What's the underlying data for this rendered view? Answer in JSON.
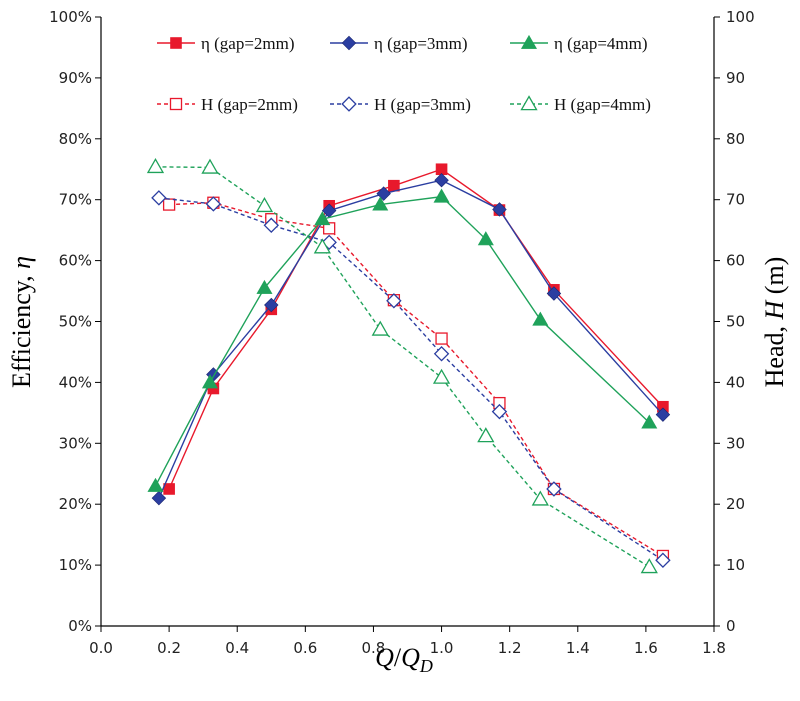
{
  "chart_data": {
    "type": "line",
    "xlabel": "Q/QD",
    "ylabel_left": "Efficiency, η",
    "ylabel_right": "Head, H (m)",
    "xlim": [
      0,
      1.8
    ],
    "ylim_left": [
      0,
      100
    ],
    "ylim_right": [
      0,
      100
    ],
    "x_ticks": [
      "0.0",
      "0.2",
      "0.4",
      "0.6",
      "0.8",
      "1.0",
      "1.2",
      "1.4",
      "1.6",
      "1.8"
    ],
    "y_left_ticks": [
      "0%",
      "10%",
      "20%",
      "30%",
      "40%",
      "50%",
      "60%",
      "70%",
      "80%",
      "90%",
      "100%"
    ],
    "y_right_ticks": [
      "0",
      "10",
      "20",
      "30",
      "40",
      "50",
      "60",
      "70",
      "80",
      "90",
      "100"
    ],
    "grid": false,
    "legend_position": "top",
    "colors": {
      "gap2": "#e8192c",
      "gap3": "#2b3ea1",
      "gap4": "#1fa25a"
    },
    "series": [
      {
        "name": "η (gap=2mm)",
        "axis": "left",
        "style": "solid",
        "marker": "square",
        "color": "#e8192c",
        "x": [
          0.2,
          0.33,
          0.5,
          0.67,
          0.86,
          1.0,
          1.17,
          1.33,
          1.65
        ],
        "y": [
          22.5,
          39,
          52,
          69,
          72.3,
          75,
          68.3,
          55.2,
          36
        ]
      },
      {
        "name": "η (gap=3mm)",
        "axis": "left",
        "style": "solid",
        "marker": "diamond",
        "color": "#2b3ea1",
        "x": [
          0.17,
          0.33,
          0.5,
          0.67,
          0.83,
          1.0,
          1.17,
          1.33,
          1.65
        ],
        "y": [
          21,
          41.3,
          52.7,
          68.2,
          71,
          73.2,
          68.4,
          54.6,
          34.7
        ]
      },
      {
        "name": "η (gap=4mm)",
        "axis": "left",
        "style": "solid",
        "marker": "triangle",
        "color": "#1fa25a",
        "x": [
          0.16,
          0.32,
          0.48,
          0.65,
          0.82,
          1.0,
          1.13,
          1.29,
          1.61
        ],
        "y": [
          23,
          40,
          55.5,
          66.8,
          69.2,
          70.5,
          63.5,
          50.3,
          33.4
        ]
      },
      {
        "name": "H (gap=2mm)",
        "axis": "right",
        "style": "dashed",
        "marker": "square-open",
        "color": "#e8192c",
        "x": [
          0.2,
          0.33,
          0.5,
          0.67,
          0.86,
          1.0,
          1.17,
          1.33,
          1.65
        ],
        "y": [
          69.2,
          69.5,
          66.8,
          65.3,
          53.5,
          47.2,
          36.6,
          22.5,
          11.5
        ]
      },
      {
        "name": "H (gap=3mm)",
        "axis": "right",
        "style": "dashed",
        "marker": "diamond-open",
        "color": "#2b3ea1",
        "x": [
          0.17,
          0.33,
          0.5,
          0.67,
          0.86,
          1.0,
          1.17,
          1.33,
          1.65
        ],
        "y": [
          70.3,
          69.3,
          65.8,
          63,
          53.4,
          44.7,
          35.2,
          22.5,
          10.8
        ]
      },
      {
        "name": "H (gap=4mm)",
        "axis": "right",
        "style": "dashed",
        "marker": "triangle-open",
        "color": "#1fa25a",
        "x": [
          0.16,
          0.32,
          0.48,
          0.65,
          0.82,
          1.0,
          1.13,
          1.29,
          1.61
        ],
        "y": [
          75.4,
          75.3,
          69,
          62.2,
          48.7,
          40.8,
          31.2,
          20.8,
          9.7
        ]
      }
    ]
  }
}
